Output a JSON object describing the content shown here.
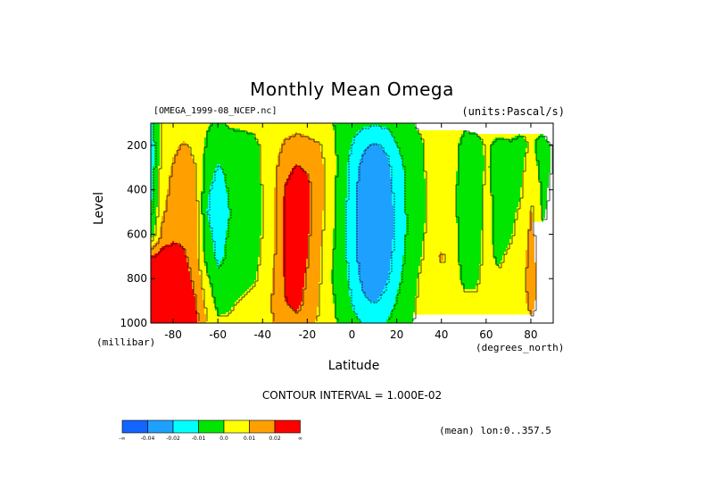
{
  "chart_data": {
    "type": "heatmap",
    "title": "Monthly Mean Omega",
    "file_label": "[OMEGA_1999-08_NCEP.nc]",
    "units_label": "(units:Pascal/s)",
    "xlabel": "Latitude",
    "x_units": "(degrees_north)",
    "ylabel": "Level",
    "y_units": "(millibar)",
    "xlim": [
      -90,
      90
    ],
    "ylim": [
      1000,
      100
    ],
    "x_ticks": [
      -80,
      -60,
      -40,
      -20,
      0,
      20,
      40,
      60,
      80
    ],
    "y_ticks": [
      200,
      400,
      600,
      800,
      1000
    ],
    "contour_interval_text": "CONTOUR INTERVAL = 1.000E-02",
    "mean_text": "(mean) lon:0..357.5",
    "colorbar": {
      "colors": [
        "#1464ff",
        "#1ea0ff",
        "#00ffff",
        "#00e600",
        "#ffff00",
        "#ffa000",
        "#ff0000"
      ],
      "labels": [
        "-∞",
        "-0.04",
        "-0.02",
        "-0.01",
        "0.0",
        "0.01",
        "0.02",
        "∞"
      ]
    },
    "levels": [
      -0.04,
      -0.02,
      -0.01,
      0.0,
      0.01,
      0.02
    ],
    "latitudes": [
      -90,
      -85,
      -80,
      -75,
      -70,
      -65,
      -60,
      -55,
      -50,
      -45,
      -40,
      -35,
      -30,
      -25,
      -20,
      -15,
      -10,
      -5,
      0,
      5,
      10,
      15,
      20,
      25,
      30,
      35,
      40,
      45,
      50,
      55,
      60,
      65,
      70,
      75,
      80,
      85,
      90
    ],
    "pressure_levels": [
      100,
      200,
      300,
      400,
      500,
      600,
      700,
      800,
      900,
      1000
    ],
    "omega_values": [
      [
        -0.011,
        0.002,
        0.004,
        0.006,
        0.004,
        0.001,
        -0.002,
        0.001,
        0.002,
        0.003,
        0.004,
        0.005,
        0.006,
        0.007,
        0.006,
        0.004,
        0.001,
        -0.003,
        -0.006,
        -0.008,
        -0.009,
        -0.008,
        -0.005,
        -0.003,
        0.002,
        0.003,
        0.004,
        0.002,
        0.001,
        0.002,
        0.003,
        0.003,
        0.003,
        0.002,
        0.001,
        0.003,
        0.004
      ],
      [
        -0.015,
        0.004,
        0.009,
        0.011,
        0.008,
        -0.002,
        -0.006,
        -0.004,
        -0.005,
        -0.004,
        0.002,
        0.006,
        0.012,
        0.014,
        0.013,
        0.011,
        0.004,
        -0.004,
        -0.011,
        -0.018,
        -0.022,
        -0.018,
        -0.01,
        -0.006,
        -0.002,
        0.003,
        0.005,
        0.002,
        -0.002,
        -0.003,
        0.001,
        -0.002,
        -0.001,
        -0.002,
        0.001,
        -0.003,
        0.001
      ],
      [
        -0.015,
        0.006,
        0.011,
        0.013,
        0.01,
        -0.006,
        -0.011,
        -0.008,
        -0.006,
        -0.005,
        0.002,
        0.008,
        0.018,
        0.021,
        0.019,
        0.014,
        0.005,
        -0.004,
        -0.014,
        -0.025,
        -0.03,
        -0.024,
        -0.014,
        -0.007,
        -0.002,
        0.003,
        0.005,
        0.002,
        -0.003,
        -0.004,
        0.001,
        -0.003,
        -0.002,
        -0.002,
        0.004,
        -0.003,
        0.001
      ],
      [
        -0.013,
        0.007,
        0.013,
        0.014,
        0.011,
        -0.009,
        -0.013,
        -0.009,
        -0.007,
        -0.006,
        0.001,
        0.009,
        0.021,
        0.024,
        0.022,
        0.015,
        0.004,
        -0.005,
        -0.015,
        -0.028,
        -0.033,
        -0.026,
        -0.015,
        -0.008,
        -0.003,
        0.002,
        0.004,
        0.001,
        -0.003,
        -0.004,
        0.002,
        -0.003,
        -0.002,
        -0.001,
        0.008,
        -0.002,
        0.002
      ],
      [
        -0.01,
        0.009,
        0.015,
        0.016,
        0.012,
        -0.01,
        -0.014,
        -0.01,
        -0.007,
        -0.006,
        0.001,
        0.009,
        0.022,
        0.025,
        0.022,
        0.014,
        0.004,
        -0.005,
        -0.016,
        -0.03,
        -0.035,
        -0.028,
        -0.016,
        -0.008,
        -0.003,
        0.002,
        0.004,
        0.001,
        -0.003,
        -0.004,
        0.002,
        -0.002,
        -0.002,
        0.001,
        0.011,
        -0.001,
        0.002
      ],
      [
        -0.006,
        0.014,
        0.018,
        0.018,
        0.013,
        -0.008,
        -0.013,
        -0.009,
        -0.007,
        -0.005,
        0.001,
        0.009,
        0.022,
        0.025,
        0.021,
        0.013,
        0.003,
        -0.006,
        -0.016,
        -0.03,
        -0.035,
        -0.028,
        -0.016,
        -0.008,
        -0.002,
        0.003,
        0.005,
        0.002,
        -0.002,
        -0.003,
        0.002,
        -0.002,
        -0.001,
        0.002,
        0.013,
        0.001,
        0.003
      ],
      [
        0.02,
        0.025,
        0.024,
        0.021,
        0.014,
        -0.005,
        -0.012,
        -0.008,
        -0.006,
        -0.004,
        0.002,
        0.01,
        0.022,
        0.024,
        0.02,
        0.012,
        0.002,
        -0.006,
        -0.015,
        -0.028,
        -0.033,
        -0.026,
        -0.014,
        -0.007,
        -0.001,
        0.004,
        0.012,
        0.002,
        -0.002,
        -0.002,
        0.002,
        -0.001,
        0.001,
        0.004,
        0.015,
        0.002,
        0.003
      ],
      [
        0.025,
        0.03,
        0.028,
        0.025,
        0.016,
        0.002,
        -0.008,
        -0.005,
        -0.004,
        -0.002,
        0.003,
        0.011,
        0.021,
        0.023,
        0.019,
        0.011,
        0.001,
        -0.005,
        -0.013,
        -0.024,
        -0.028,
        -0.022,
        -0.012,
        -0.006,
        0.001,
        0.005,
        0.005,
        0.002,
        -0.001,
        -0.001,
        0.002,
        0.001,
        0.002,
        0.004,
        0.016,
        0.003,
        0.004
      ],
      [
        0.03,
        0.035,
        0.032,
        0.028,
        0.02,
        0.006,
        -0.004,
        -0.002,
        0.001,
        0.004,
        0.005,
        0.012,
        0.02,
        0.022,
        0.018,
        0.01,
        0.002,
        -0.004,
        -0.011,
        -0.018,
        -0.021,
        -0.016,
        -0.009,
        -0.004,
        0.002,
        0.006,
        0.006,
        0.003,
        0.001,
        0.001,
        0.003,
        0.002,
        0.003,
        0.005,
        0.014,
        0.004,
        0.005
      ],
      [
        0.03,
        0.03,
        0.03,
        0.028,
        0.022,
        0.01,
        0.002,
        0.002,
        0.006,
        0.004,
        0.005,
        0.011,
        0.016,
        0.018,
        0.015,
        0.008,
        0.003,
        -0.002,
        -0.007,
        -0.01,
        -0.012,
        -0.01,
        -0.005,
        -0.002,
        0.003,
        0.006,
        0.006,
        0.004,
        0.002,
        0.002,
        0.003,
        0.003,
        0.004,
        0.005,
        0.008,
        0.004,
        0.005
      ]
    ]
  }
}
